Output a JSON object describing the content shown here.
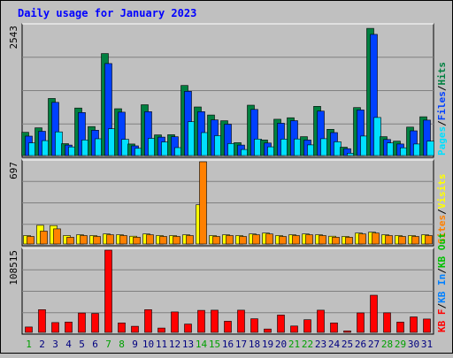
{
  "chart_data": [
    {
      "type": "bar",
      "title": "Daily usage for January 2023",
      "panel": "hits-files-pages",
      "categories": [
        "1",
        "2",
        "3",
        "4",
        "5",
        "6",
        "7",
        "8",
        "9",
        "10",
        "11",
        "12",
        "13",
        "14",
        "15",
        "16",
        "17",
        "18",
        "19",
        "20",
        "21",
        "22",
        "23",
        "24",
        "25",
        "26",
        "27",
        "28",
        "29",
        "30",
        "31"
      ],
      "weekend_days": [
        "1",
        "7",
        "8",
        "14",
        "15",
        "21",
        "22",
        "28",
        "29"
      ],
      "y_max_label": "2543",
      "ylim": [
        0,
        2543
      ],
      "series": [
        {
          "name": "Hits",
          "color": "#008040",
          "values": [
            455,
            543,
            1117,
            233,
            931,
            568,
            1997,
            917,
            227,
            994,
            405,
            408,
            1372,
            951,
            794,
            682,
            253,
            986,
            304,
            711,
            740,
            370,
            963,
            514,
            165,
            939,
            2489,
            370,
            282,
            557,
            760
          ]
        },
        {
          "name": "Files",
          "color": "#0040ff",
          "values": [
            380,
            475,
            1041,
            206,
            843,
            497,
            1801,
            849,
            190,
            860,
            361,
            369,
            1257,
            860,
            699,
            614,
            206,
            903,
            245,
            633,
            684,
            305,
            871,
            449,
            135,
            893,
            2371,
            314,
            227,
            484,
            693
          ]
        },
        {
          "name": "Pages",
          "color": "#00e0ff",
          "values": [
            247,
            293,
            464,
            169,
            306,
            329,
            524,
            318,
            142,
            337,
            266,
            155,
            662,
            449,
            390,
            235,
            119,
            323,
            172,
            321,
            326,
            210,
            330,
            270,
            46,
            382,
            746,
            248,
            152,
            226,
            282
          ]
        }
      ]
    },
    {
      "type": "bar",
      "panel": "visits-sites",
      "categories": [
        "1",
        "2",
        "3",
        "4",
        "5",
        "6",
        "7",
        "8",
        "9",
        "10",
        "11",
        "12",
        "13",
        "14",
        "15",
        "16",
        "17",
        "18",
        "19",
        "20",
        "21",
        "22",
        "23",
        "24",
        "25",
        "26",
        "27",
        "28",
        "29",
        "30",
        "31"
      ],
      "y_max_label": "697",
      "ylim": [
        0,
        697
      ],
      "series": [
        {
          "name": "Visits",
          "color": "#ffff00",
          "values": [
            71,
            158,
            156,
            71,
            78,
            71,
            85,
            78,
            66,
            85,
            71,
            71,
            78,
            332,
            71,
            78,
            71,
            85,
            92,
            71,
            78,
            85,
            78,
            66,
            64,
            92,
            100,
            78,
            71,
            71,
            78
          ]
        },
        {
          "name": "Sites",
          "color": "#ff8000",
          "values": [
            64,
            109,
            128,
            57,
            71,
            64,
            78,
            71,
            57,
            78,
            64,
            64,
            71,
            697,
            64,
            71,
            64,
            78,
            85,
            64,
            71,
            78,
            71,
            57,
            57,
            85,
            92,
            71,
            64,
            64,
            71
          ]
        }
      ]
    },
    {
      "type": "bar",
      "panel": "kbytes",
      "categories": [
        "1",
        "2",
        "3",
        "4",
        "5",
        "6",
        "7",
        "8",
        "9",
        "10",
        "11",
        "12",
        "13",
        "14",
        "15",
        "16",
        "17",
        "18",
        "19",
        "20",
        "21",
        "22",
        "23",
        "24",
        "25",
        "26",
        "27",
        "28",
        "29",
        "30",
        "31"
      ],
      "y_max_label": "108515",
      "ylim": [
        0,
        108515
      ],
      "legend_text": [
        "KB F",
        "KB In",
        "KB Out"
      ],
      "legend_colors": [
        "#ff0000",
        "#0080ff",
        "#00c000"
      ],
      "series": [
        {
          "name": "KB F",
          "color": "#ff0000",
          "values": [
            7120,
            30000,
            12900,
            13600,
            25600,
            25000,
            108515,
            12500,
            8000,
            30000,
            5700,
            27000,
            11000,
            29000,
            29300,
            14700,
            29300,
            18000,
            4400,
            22900,
            8400,
            16700,
            29300,
            12500,
            2000,
            25700,
            49000,
            25800,
            13500,
            20400,
            17600
          ]
        }
      ]
    }
  ],
  "legend_top": [
    {
      "text": "Pages",
      "color": "#00e0ff"
    },
    {
      "text": "/",
      "color": "#000000"
    },
    {
      "text": "Files",
      "color": "#0040ff"
    },
    {
      "text": "/",
      "color": "#000000"
    },
    {
      "text": "Hits",
      "color": "#008040"
    }
  ],
  "legend_mid": [
    {
      "text": "Sites",
      "color": "#ff8000"
    },
    {
      "text": "/",
      "color": "#000000"
    },
    {
      "text": "Visits",
      "color": "#ffff00"
    }
  ],
  "legend_bot": [
    {
      "text": "KB F",
      "color": "#ff0000"
    },
    {
      "text": "/",
      "color": "#000000"
    },
    {
      "text": "KB In",
      "color": "#0080ff"
    },
    {
      "text": "/",
      "color": "#000000"
    },
    {
      "text": "KB Out",
      "color": "#00c000"
    }
  ],
  "colors": {
    "background": "#c0c0c0",
    "plot_background": "#c0c0c0",
    "grid": "#808080",
    "title": "#0000ff",
    "weekday_label": "#000080",
    "weekend_label": "#00a000"
  }
}
